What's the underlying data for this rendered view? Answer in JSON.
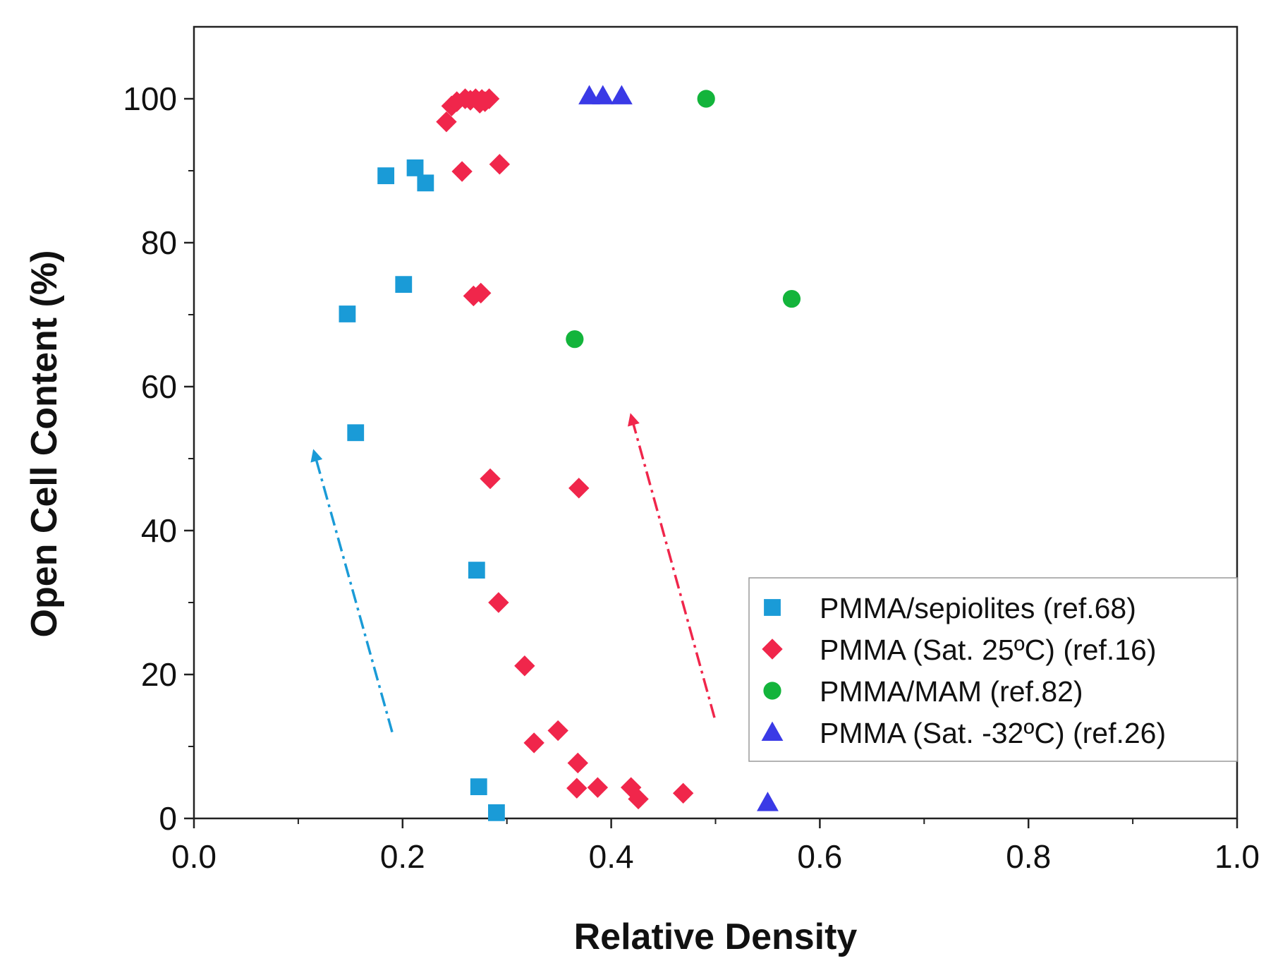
{
  "chart_data": {
    "type": "scatter",
    "title": "",
    "xlabel": "Relative Density",
    "ylabel": "Open Cell Content (%)",
    "xlim": [
      0.0,
      1.0
    ],
    "ylim": [
      0,
      110
    ],
    "xticks": [
      0.0,
      0.2,
      0.4,
      0.6,
      0.8,
      1.0
    ],
    "xtick_labels": [
      "0.0",
      "0.2",
      "0.4",
      "0.6",
      "0.8",
      "1.0"
    ],
    "yticks": [
      0,
      20,
      40,
      60,
      80,
      100
    ],
    "ytick_labels": [
      "0",
      "20",
      "40",
      "60",
      "80",
      "100"
    ],
    "grid": false,
    "legend_position": "bottom-right",
    "series": [
      {
        "name": "PMMA/sepiolites (ref.68)",
        "marker": "square",
        "color": "#1a9bd7",
        "x": [
          0.184,
          0.212,
          0.222,
          0.201,
          0.147,
          0.155,
          0.271,
          0.273,
          0.29
        ],
        "y": [
          89.3,
          90.4,
          88.3,
          74.2,
          70.1,
          53.6,
          34.5,
          4.4,
          0.8
        ]
      },
      {
        "name": "PMMA (Sat. 25ºC) (ref.16)",
        "marker": "diamond",
        "color": "#f0264b",
        "x": [
          0.242,
          0.247,
          0.252,
          0.26,
          0.265,
          0.27,
          0.274,
          0.276,
          0.279,
          0.283,
          0.257,
          0.293,
          0.268,
          0.275,
          0.284,
          0.369,
          0.292,
          0.317,
          0.326,
          0.349,
          0.368,
          0.367,
          0.387,
          0.419,
          0.426,
          0.469
        ],
        "y": [
          96.8,
          99.0,
          99.6,
          100.0,
          99.8,
          100.0,
          99.4,
          99.9,
          99.6,
          100.0,
          89.9,
          90.9,
          72.6,
          73.0,
          47.2,
          45.9,
          30.0,
          21.2,
          10.5,
          12.2,
          7.7,
          4.2,
          4.3,
          4.3,
          2.7,
          3.5
        ]
      },
      {
        "name": "PMMA/MAM (ref.82)",
        "marker": "circle",
        "color": "#13b43b",
        "x": [
          0.491,
          0.573,
          0.365
        ],
        "y": [
          100.0,
          72.2,
          66.6
        ]
      },
      {
        "name": "PMMA (Sat. -32ºC) (ref.26)",
        "marker": "triangle",
        "color": "#3a3ae6",
        "x": [
          0.379,
          0.392,
          0.41,
          0.55
        ],
        "y": [
          100.4,
          100.4,
          100.4,
          2.2
        ]
      }
    ],
    "annotations": [
      {
        "type": "dash-dot-arrow",
        "color": "#1a9bd7",
        "from": [
          0.19,
          12
        ],
        "to": [
          0.115,
          51
        ]
      },
      {
        "type": "dash-dot-arrow",
        "color": "#f0264b",
        "from": [
          0.499,
          14
        ],
        "to": [
          0.419,
          56
        ]
      }
    ]
  }
}
